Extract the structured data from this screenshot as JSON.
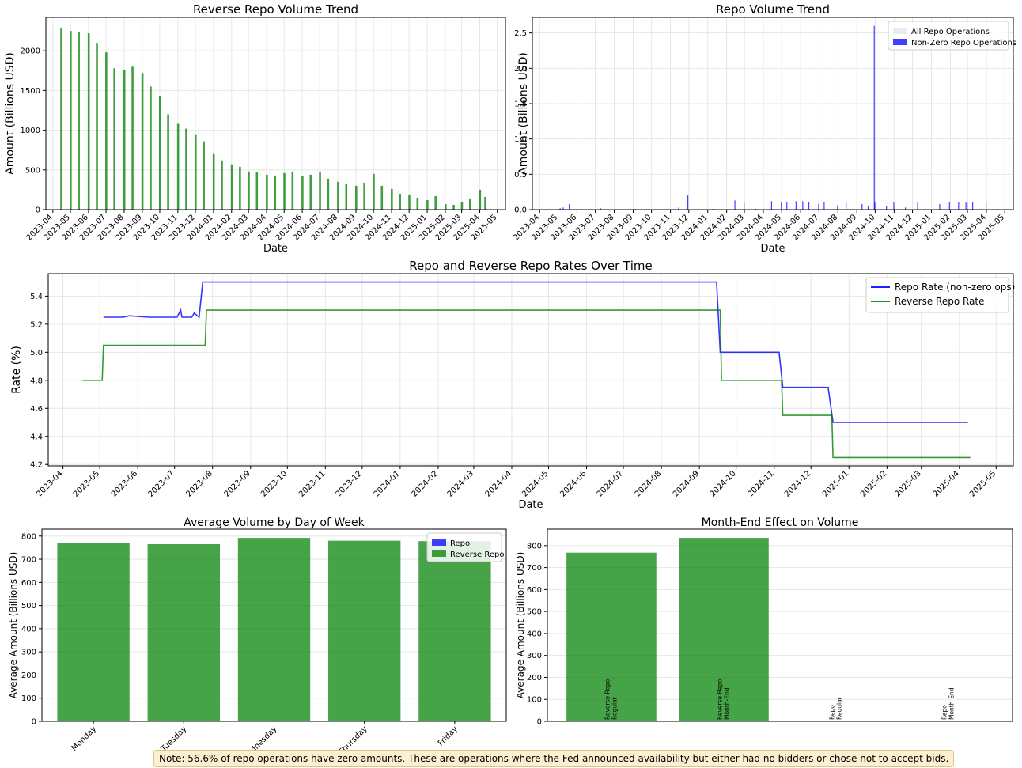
{
  "colors": {
    "repo": "#0000ff",
    "reverse_repo": "#008000",
    "grid": "#e6e6e6",
    "note_bg": "#fdf0d0"
  },
  "note": "Note: 56.6% of repo operations have zero amounts. These are operations where the Fed announced availability but either had no bidders or chose not to accept bids.",
  "chart_data": [
    {
      "id": "rrp_volume",
      "type": "bar",
      "title": "Reverse Repo Volume Trend",
      "xlabel": "Date",
      "ylabel": "Amount (Billions USD)",
      "x_type": "date",
      "xlim": [
        "2023-03-20",
        "2025-05-15"
      ],
      "ylim": [
        0,
        2420
      ],
      "yticks": [
        0,
        500,
        1000,
        1500,
        2000
      ],
      "xticks": [
        "2023-04",
        "2023-05",
        "2023-06",
        "2023-07",
        "2023-08",
        "2023-09",
        "2023-10",
        "2023-11",
        "2023-12",
        "2024-01",
        "2024-02",
        "2024-03",
        "2024-04",
        "2024-05",
        "2024-06",
        "2024-07",
        "2024-08",
        "2024-09",
        "2024-10",
        "2024-11",
        "2024-12",
        "2025-01",
        "2025-02",
        "2025-03",
        "2025-04",
        "2025-05"
      ],
      "grid": true,
      "series": [
        {
          "color": "green",
          "x": [
            "2023-04-15",
            "2023-05-01",
            "2023-05-15",
            "2023-06-01",
            "2023-06-15",
            "2023-07-01",
            "2023-07-15",
            "2023-08-01",
            "2023-08-15",
            "2023-09-01",
            "2023-09-15",
            "2023-10-01",
            "2023-10-15",
            "2023-11-01",
            "2023-11-15",
            "2023-12-01",
            "2023-12-15",
            "2024-01-01",
            "2024-01-15",
            "2024-02-01",
            "2024-02-15",
            "2024-03-01",
            "2024-03-15",
            "2024-04-01",
            "2024-04-15",
            "2024-05-01",
            "2024-05-15",
            "2024-06-01",
            "2024-06-15",
            "2024-07-01",
            "2024-07-15",
            "2024-08-01",
            "2024-08-15",
            "2024-09-01",
            "2024-09-15",
            "2024-10-01",
            "2024-10-15",
            "2024-11-01",
            "2024-11-15",
            "2024-12-01",
            "2024-12-15",
            "2025-01-01",
            "2025-01-15",
            "2025-02-01",
            "2025-02-15",
            "2025-03-01",
            "2025-03-15",
            "2025-04-01",
            "2025-04-10"
          ],
          "values": [
            2280,
            2250,
            2230,
            2220,
            2100,
            1980,
            1780,
            1760,
            1800,
            1720,
            1550,
            1430,
            1200,
            1080,
            1020,
            940,
            860,
            700,
            620,
            570,
            540,
            480,
            470,
            440,
            430,
            460,
            480,
            420,
            440,
            480,
            390,
            350,
            320,
            300,
            340,
            450,
            300,
            260,
            200,
            190,
            150,
            120,
            170,
            70,
            60,
            100,
            140,
            250,
            160
          ]
        }
      ]
    },
    {
      "id": "repo_volume",
      "type": "bar",
      "title": "Repo Volume Trend",
      "xlabel": "Date",
      "ylabel": "Amount (Billions USD)",
      "x_type": "date",
      "xlim": [
        "2023-03-20",
        "2025-05-15"
      ],
      "ylim": [
        0,
        2.72
      ],
      "yticks": [
        0.0,
        0.5,
        1.0,
        1.5,
        2.0,
        2.5
      ],
      "xticks": [
        "2023-04",
        "2023-05",
        "2023-06",
        "2023-07",
        "2023-08",
        "2023-09",
        "2023-10",
        "2023-11",
        "2023-12",
        "2024-01",
        "2024-02",
        "2024-03",
        "2024-04",
        "2024-05",
        "2024-06",
        "2024-07",
        "2024-08",
        "2024-09",
        "2024-10",
        "2024-11",
        "2024-12",
        "2025-01",
        "2025-02",
        "2025-03",
        "2025-04",
        "2025-05"
      ],
      "grid": true,
      "legend": "upper-right",
      "series": [
        {
          "name": "All Repo Operations",
          "color": "lightsteelblue",
          "x": [],
          "values": []
        },
        {
          "name": "Non-Zero Repo Operations",
          "color": "blue",
          "x": [
            "2023-05-05",
            "2023-05-10",
            "2023-05-20",
            "2023-07-10",
            "2023-09-05",
            "2023-11-15",
            "2023-11-30",
            "2024-01-10",
            "2024-02-15",
            "2024-03-01",
            "2024-03-20",
            "2024-04-15",
            "2024-05-01",
            "2024-05-10",
            "2024-05-25",
            "2024-06-05",
            "2024-06-15",
            "2024-07-01",
            "2024-07-10",
            "2024-08-01",
            "2024-08-15",
            "2024-09-10",
            "2024-09-20",
            "2024-09-30",
            "2024-10-01",
            "2024-10-20",
            "2024-11-01",
            "2024-11-20",
            "2024-12-10",
            "2025-01-15",
            "2025-01-31",
            "2025-02-15",
            "2025-02-27",
            "2025-03-01",
            "2025-03-10",
            "2025-04-01"
          ],
          "values": [
            0.02,
            0.03,
            0.08,
            0.02,
            0.01,
            0.03,
            0.2,
            0.01,
            0.13,
            0.1,
            0.01,
            0.12,
            0.1,
            0.1,
            0.12,
            0.12,
            0.1,
            0.08,
            0.1,
            0.06,
            0.11,
            0.08,
            0.05,
            2.6,
            0.1,
            0.05,
            0.1,
            0.03,
            0.1,
            0.08,
            0.1,
            0.1,
            0.1,
            0.09,
            0.1,
            0.1
          ]
        }
      ]
    },
    {
      "id": "rates",
      "type": "line",
      "title": "Repo and Reverse Repo Rates Over Time",
      "xlabel": "Date",
      "ylabel": "Rate (%)",
      "x_type": "date",
      "xlim": [
        "2023-03-20",
        "2025-05-15"
      ],
      "ylim": [
        4.19,
        5.56
      ],
      "yticks": [
        4.2,
        4.4,
        4.6,
        4.8,
        5.0,
        5.2,
        5.4
      ],
      "xticks": [
        "2023-04",
        "2023-05",
        "2023-06",
        "2023-07",
        "2023-08",
        "2023-09",
        "2023-10",
        "2023-11",
        "2023-12",
        "2024-01",
        "2024-02",
        "2024-03",
        "2024-04",
        "2024-05",
        "2024-06",
        "2024-07",
        "2024-08",
        "2024-09",
        "2024-10",
        "2024-11",
        "2024-12",
        "2025-01",
        "2025-02",
        "2025-03",
        "2025-04",
        "2025-05"
      ],
      "grid": true,
      "legend": "upper-right",
      "series": [
        {
          "name": "Repo Rate (non-zero ops)",
          "color": "blue",
          "x": [
            "2023-05-04",
            "2023-05-20",
            "2023-05-25",
            "2023-06-10",
            "2023-07-03",
            "2023-07-06",
            "2023-07-07",
            "2023-07-15",
            "2023-07-17",
            "2023-07-21",
            "2023-07-24",
            "2023-07-25",
            "2024-03-28",
            "2024-04-01",
            "2024-09-15",
            "2024-09-18",
            "2024-09-25",
            "2024-10-01",
            "2024-11-05",
            "2024-11-08",
            "2024-12-15",
            "2024-12-19",
            "2025-04-08"
          ],
          "values": [
            5.25,
            5.25,
            5.26,
            5.25,
            5.25,
            5.3,
            5.25,
            5.25,
            5.28,
            5.25,
            5.5,
            5.5,
            5.5,
            5.5,
            5.5,
            5.0,
            5.0,
            5.0,
            5.0,
            4.75,
            4.75,
            4.5,
            4.5
          ]
        },
        {
          "name": "Reverse Repo Rate",
          "color": "green",
          "x": [
            "2023-04-17",
            "2023-05-03",
            "2023-05-04",
            "2023-07-26",
            "2023-07-27",
            "2024-09-18",
            "2024-09-19",
            "2024-11-07",
            "2024-11-08",
            "2024-12-18",
            "2024-12-19",
            "2025-04-10"
          ],
          "values": [
            4.8,
            4.8,
            5.05,
            5.05,
            5.3,
            5.3,
            4.8,
            4.8,
            4.55,
            4.55,
            4.25,
            4.25
          ]
        }
      ]
    },
    {
      "id": "day_of_week",
      "type": "bar",
      "title": "Average Volume by Day of Week",
      "xlabel": "",
      "ylabel": "Average Amount (Billions USD)",
      "categories": [
        "Monday",
        "Tuesday",
        "Wednesday",
        "Thursday",
        "Friday"
      ],
      "ylim": [
        0,
        830
      ],
      "yticks": [
        0,
        100,
        200,
        300,
        400,
        500,
        600,
        700,
        800
      ],
      "grid": true,
      "legend": "upper-right",
      "series": [
        {
          "name": "Repo",
          "color": "blue",
          "values": [
            0.01,
            0.01,
            0.01,
            0.01,
            0.01
          ]
        },
        {
          "name": "Reverse Repo",
          "color": "green",
          "values": [
            770,
            765,
            792,
            780,
            778
          ]
        }
      ]
    },
    {
      "id": "month_end",
      "type": "bar",
      "title": "Month-End Effect on Volume",
      "xlabel": "",
      "ylabel": "Average Amount (Billions USD)",
      "categories": [
        "Reverse Repo\nRegular",
        "Reverse Repo\nMonth-End",
        "Repo\nRegular",
        "Repo\nMonth-End"
      ],
      "ylim": [
        0,
        875
      ],
      "yticks": [
        0,
        100,
        200,
        300,
        400,
        500,
        600,
        700,
        800
      ],
      "grid": true,
      "series": [
        {
          "color": "green",
          "values": [
            768,
            835,
            0,
            0
          ]
        }
      ]
    }
  ]
}
